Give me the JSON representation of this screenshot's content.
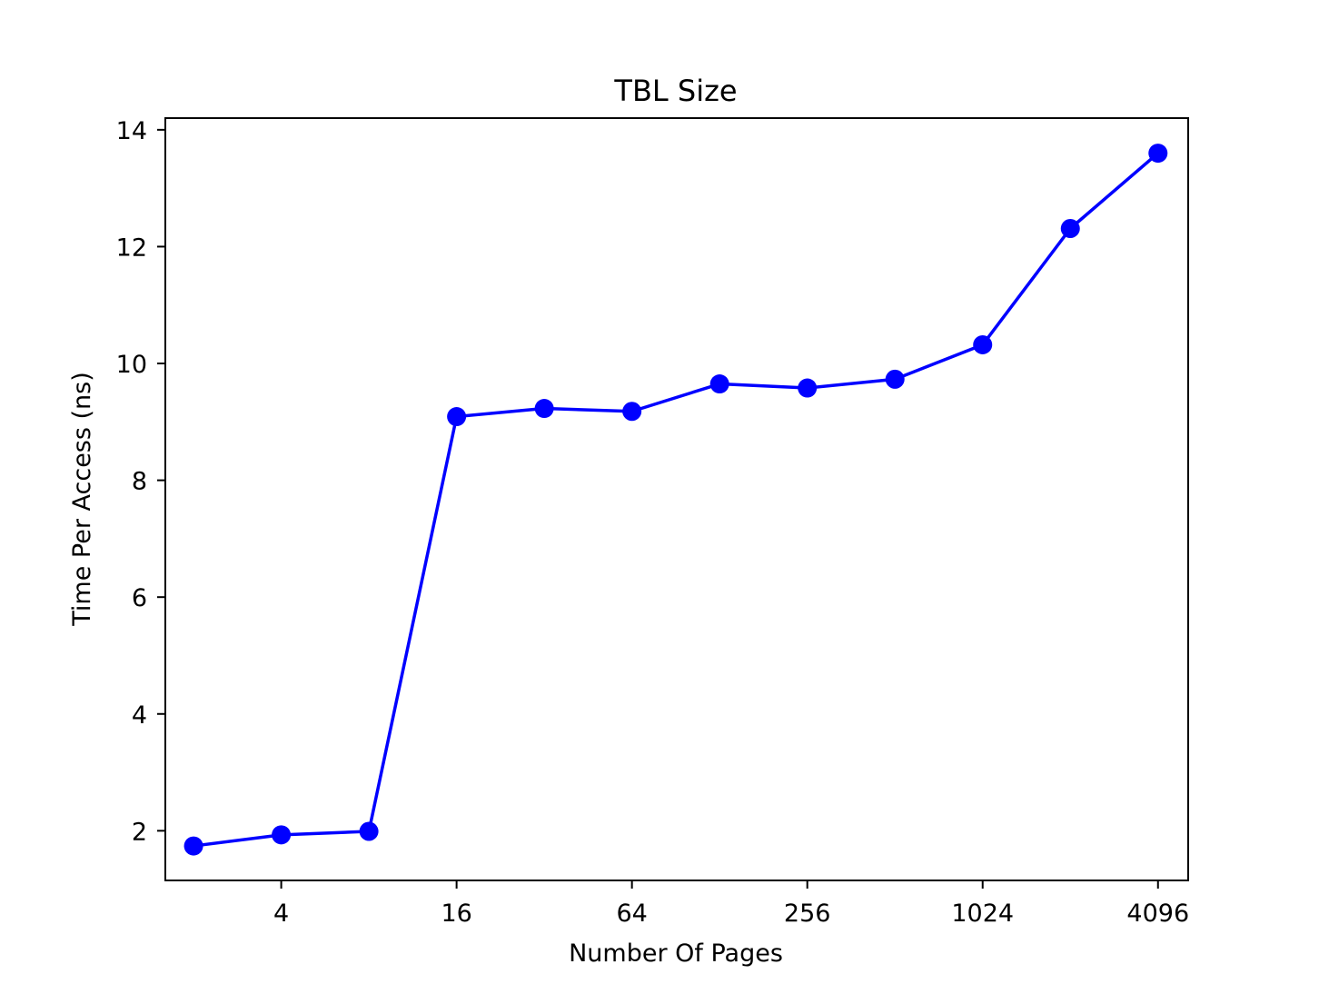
{
  "chart_data": {
    "type": "line",
    "title": "TBL Size",
    "xlabel": "Number Of Pages",
    "ylabel": "Time Per Access (ns)",
    "x_scale": "log2",
    "x": [
      2,
      4,
      8,
      16,
      32,
      64,
      128,
      256,
      512,
      1024,
      2048,
      4096
    ],
    "x_ticks": [
      4,
      16,
      64,
      256,
      1024,
      4096
    ],
    "x_tick_labels": [
      "4",
      "16",
      "64",
      "256",
      "1024",
      "4096"
    ],
    "xlim": [
      1.6,
      5200
    ],
    "y_ticks": [
      2,
      4,
      6,
      8,
      10,
      12,
      14
    ],
    "y_tick_labels": [
      "2",
      "4",
      "6",
      "8",
      "10",
      "12",
      "14"
    ],
    "ylim": [
      1.15,
      14.2
    ],
    "grid": false,
    "series": [
      {
        "color": "#0000ff",
        "marker": "circle",
        "values": [
          1.74,
          1.93,
          1.99,
          9.09,
          9.23,
          9.18,
          9.65,
          9.58,
          9.73,
          10.32,
          12.31,
          13.6
        ]
      }
    ]
  }
}
